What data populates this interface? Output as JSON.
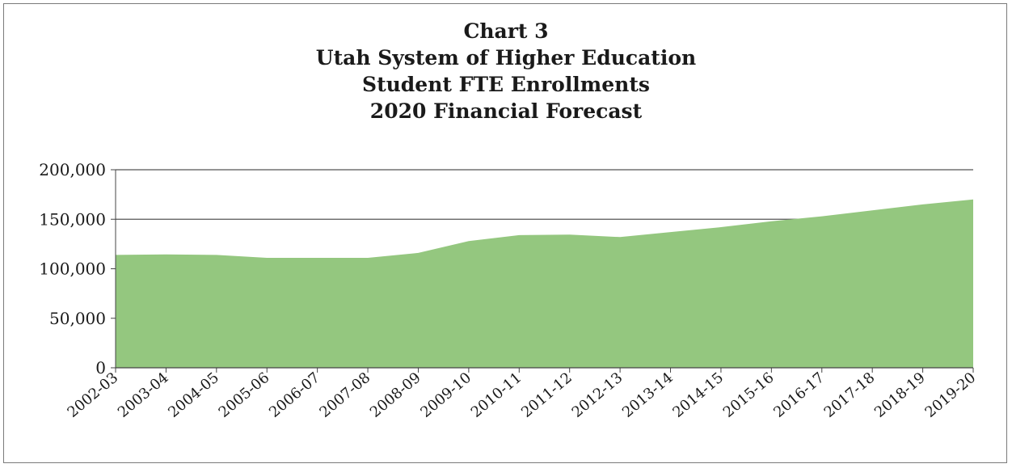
{
  "chart_data": {
    "type": "area",
    "title_lines": [
      "Chart 3",
      "Utah System of Higher Education",
      "Student FTE Enrollments",
      "2020 Financial Forecast"
    ],
    "xlabel": "",
    "ylabel": "",
    "categories": [
      "2002-03",
      "2003-04",
      "2004-05",
      "2005-06",
      "2006-07",
      "2007-08",
      "2008-09",
      "2009-10",
      "2010-11",
      "2011-12",
      "2012-13",
      "2013-14",
      "2014-15",
      "2015-16",
      "2016-17",
      "2017-18",
      "2018-19",
      "2019-20"
    ],
    "series": [
      {
        "values": [
          114000,
          114500,
          114000,
          111000,
          111000,
          111000,
          116000,
          128000,
          134000,
          134500,
          132000,
          137000,
          142000,
          148000,
          153000,
          159000,
          165000,
          170000
        ]
      }
    ],
    "ylim": [
      0,
      200000
    ],
    "yticks": [
      0,
      50000,
      100000,
      150000,
      200000
    ],
    "ytick_labels": [
      "0",
      "50,000",
      "100,000",
      "150,000",
      "200,000"
    ],
    "grid": "horizontal major gridlines",
    "legend": "none",
    "colors": {
      "area_fill": "#94c77f",
      "gridline": "#555555",
      "axis": "#444444"
    }
  }
}
